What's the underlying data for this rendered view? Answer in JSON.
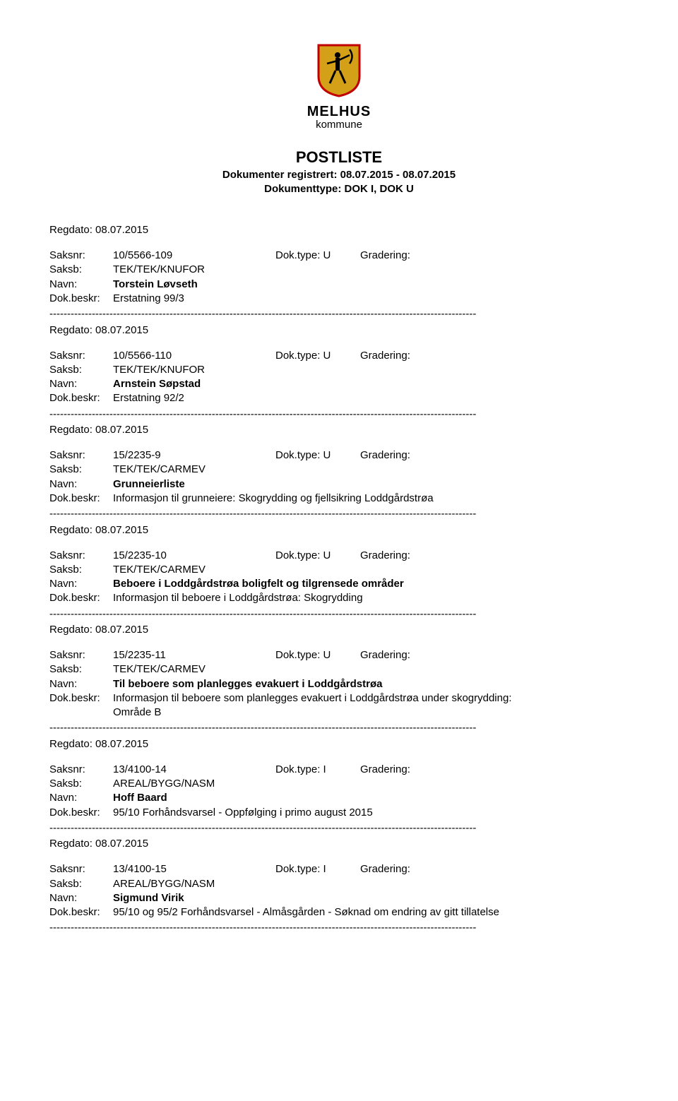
{
  "logo": {
    "line1": "MELHUS",
    "line2": "kommune",
    "shield_color": "#d4a017",
    "shield_border": "#c00000",
    "figure_color": "#000000"
  },
  "header": {
    "title": "POSTLISTE",
    "subtitle1": "Dokumenter registrert: 08.07.2015 - 08.07.2015",
    "subtitle2": "Dokumenttype: DOK I, DOK U"
  },
  "labels": {
    "regdato": "Regdato:",
    "saksnr": "Saksnr:",
    "saksb": "Saksb:",
    "navn": "Navn:",
    "dokbeskr": "Dok.beskr:",
    "doktype": "Dok.type:",
    "gradering": "Gradering:"
  },
  "dashline": "-------------------------------------------------------------------------------------------------------------------------",
  "entries": [
    {
      "regdato": "08.07.2015",
      "saksnr": "10/5566-109",
      "doktype": "U",
      "gradering": "",
      "saksb": "TEK/TEK/KNUFOR",
      "navn": "Torstein Løvseth",
      "dokbeskr": "Erstatning 99/3",
      "dokbeskr_extra": null
    },
    {
      "regdato": "08.07.2015",
      "saksnr": "10/5566-110",
      "doktype": "U",
      "gradering": "",
      "saksb": "TEK/TEK/KNUFOR",
      "navn": "Arnstein Søpstad",
      "dokbeskr": "Erstatning 92/2",
      "dokbeskr_extra": null
    },
    {
      "regdato": "08.07.2015",
      "saksnr": "15/2235-9",
      "doktype": "U",
      "gradering": "",
      "saksb": "TEK/TEK/CARMEV",
      "navn": "Grunneierliste",
      "dokbeskr": "Informasjon til grunneiere: Skogrydding og fjellsikring Loddgårdstrøa",
      "dokbeskr_extra": null
    },
    {
      "regdato": "08.07.2015",
      "saksnr": "15/2235-10",
      "doktype": "U",
      "gradering": "",
      "saksb": "TEK/TEK/CARMEV",
      "navn": "Beboere i Loddgårdstrøa boligfelt og tilgrensede områder",
      "dokbeskr": "Informasjon til beboere i Loddgårdstrøa: Skogrydding",
      "dokbeskr_extra": null
    },
    {
      "regdato": "08.07.2015",
      "saksnr": "15/2235-11",
      "doktype": "U",
      "gradering": "",
      "saksb": "TEK/TEK/CARMEV",
      "navn": "Til beboere som planlegges evakuert i Loddgårdstrøa",
      "dokbeskr": "Informasjon til beboere som planlegges evakuert i Loddgårdstrøa under skogrydding:",
      "dokbeskr_extra": "Område B"
    },
    {
      "regdato": "08.07.2015",
      "saksnr": "13/4100-14",
      "doktype": "I",
      "gradering": "",
      "saksb": "AREAL/BYGG/NASM",
      "navn": "Hoff Baard",
      "dokbeskr": "95/10 Forhåndsvarsel - Oppfølging i primo august 2015",
      "dokbeskr_extra": null
    },
    {
      "regdato": "08.07.2015",
      "saksnr": "13/4100-15",
      "doktype": "I",
      "gradering": "",
      "saksb": "AREAL/BYGG/NASM",
      "navn": "Sigmund Virik",
      "dokbeskr": "95/10 og 95/2 Forhåndsvarsel - Almåsgården - Søknad om endring av gitt tillatelse",
      "dokbeskr_extra": null
    }
  ]
}
